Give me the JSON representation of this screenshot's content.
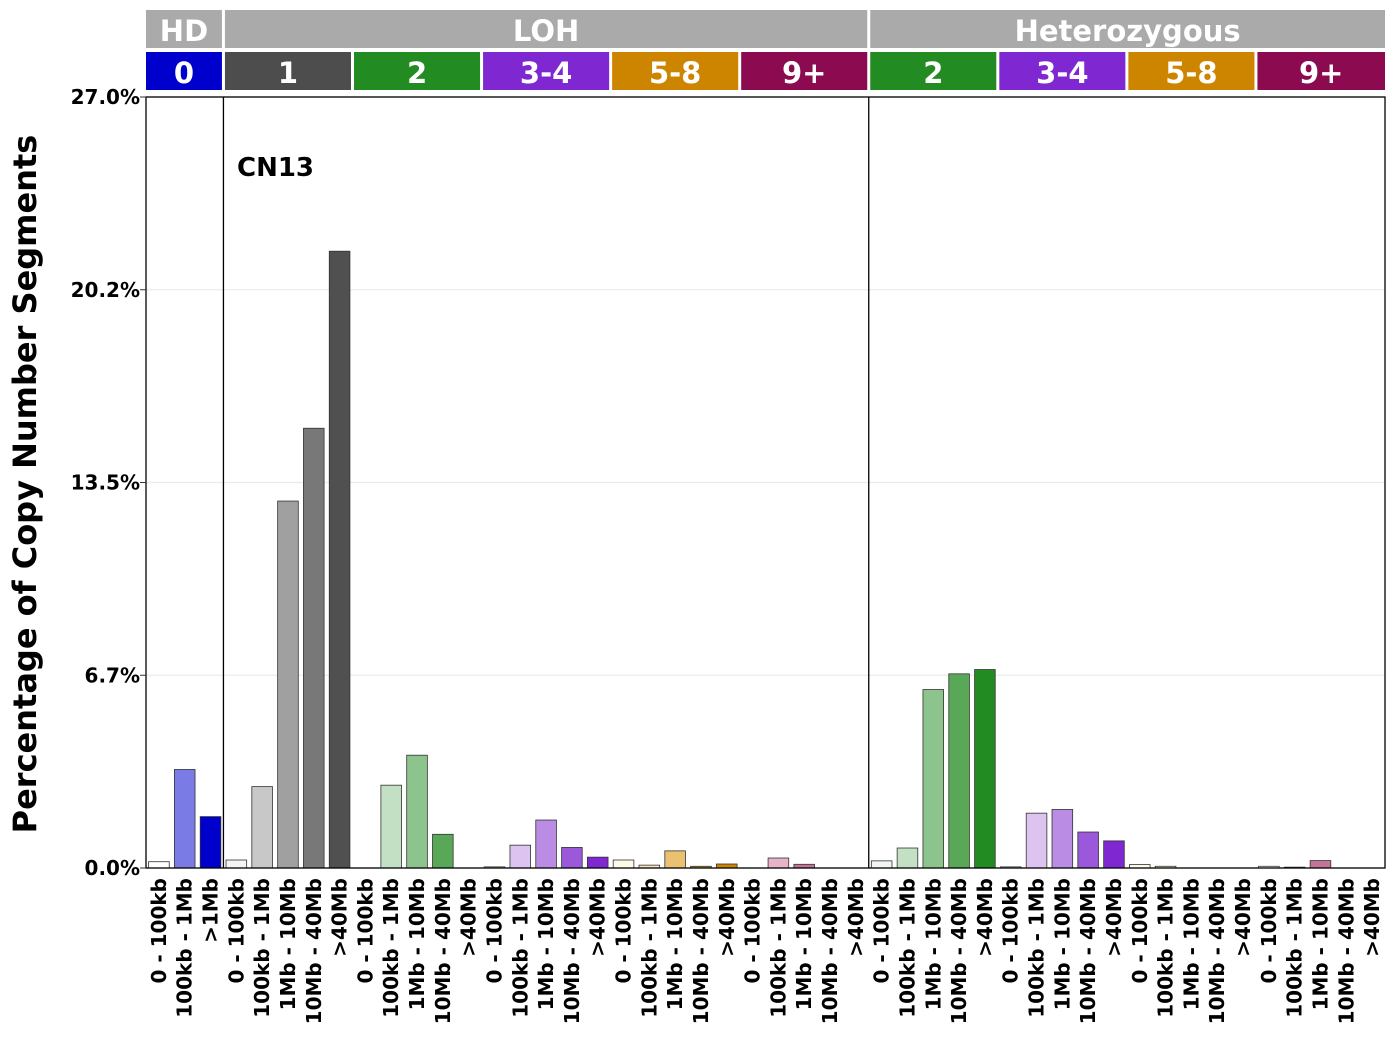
{
  "chart_data": {
    "type": "bar",
    "title": "",
    "annotation": "CN13",
    "ylabel": "Percentage of Copy Number Segments",
    "xlabel": "",
    "ylim": [
      0,
      27.0
    ],
    "yticks": [
      "0.0%",
      "6.7%",
      "13.5%",
      "20.2%",
      "27.0%"
    ],
    "ytick_values": [
      0,
      6.75,
      13.5,
      20.25,
      27.0
    ],
    "grid": "horizontal",
    "legend": "none",
    "top_strip": [
      {
        "label": "HD",
        "color": "#aaaaaa"
      },
      {
        "label": "LOH",
        "color": "#aaaaaa"
      },
      {
        "label": "Heterozygous",
        "color": "#aaaaaa"
      }
    ],
    "groups": [
      {
        "strip": "HD",
        "label": "0",
        "color": "#0000cd",
        "categories": [
          "0 - 100kb",
          "100kb - 1Mb",
          ">1Mb"
        ],
        "values": [
          0.22,
          3.45,
          1.8
        ],
        "fills": [
          "#ffffff",
          "#7b7be6",
          "#0000cd"
        ]
      },
      {
        "strip": "LOH",
        "label": "1",
        "color": "#4d4d4d",
        "categories": [
          "0 - 100kb",
          "100kb - 1Mb",
          "1Mb - 10Mb",
          "10Mb - 40Mb",
          ">40Mb"
        ],
        "values": [
          0.28,
          2.85,
          12.85,
          15.4,
          21.6
        ],
        "fills": [
          "#f4f4f4",
          "#c8c8c8",
          "#a0a0a0",
          "#787878",
          "#505050"
        ]
      },
      {
        "strip": "LOH",
        "label": "2",
        "color": "#228b22",
        "categories": [
          "0 - 100kb",
          "100kb - 1Mb",
          "1Mb - 10Mb",
          "10Mb - 40Mb",
          ">40Mb"
        ],
        "values": [
          0,
          2.9,
          3.95,
          1.18,
          0
        ],
        "fills": [
          "#eef6ee",
          "#c4e0c4",
          "#8dc48d",
          "#58a858",
          "#228b22"
        ]
      },
      {
        "strip": "LOH",
        "label": "3-4",
        "color": "#7f28d2",
        "categories": [
          "0 - 100kb",
          "100kb - 1Mb",
          "1Mb - 10Mb",
          "10Mb - 40Mb",
          ">40Mb"
        ],
        "values": [
          0.04,
          0.8,
          1.68,
          0.72,
          0.38
        ],
        "fills": [
          "#f3ebfa",
          "#ddc4f0",
          "#bb8ce4",
          "#9b58da",
          "#7f28d2"
        ]
      },
      {
        "strip": "LOH",
        "label": "5-8",
        "color": "#cd8500",
        "categories": [
          "0 - 100kb",
          "100kb - 1Mb",
          "1Mb - 10Mb",
          "10Mb - 40Mb",
          ">40Mb"
        ],
        "values": [
          0.28,
          0.1,
          0.6,
          0.06,
          0.14
        ],
        "fills": [
          "#fffae8",
          "#f7e7bb",
          "#ebc070",
          "#d9a032",
          "#cd8500"
        ]
      },
      {
        "strip": "LOH",
        "label": "9+",
        "color": "#8b0a50",
        "categories": [
          "0 - 100kb",
          "100kb - 1Mb",
          "1Mb - 10Mb",
          "10Mb - 40Mb",
          ">40Mb"
        ],
        "values": [
          0,
          0.35,
          0.13,
          0,
          0
        ],
        "fills": [
          "#fbeef3",
          "#e6b3c8",
          "#c47499",
          "#a43d72",
          "#8b0a50"
        ]
      },
      {
        "strip": "Heterozygous",
        "label": "2",
        "color": "#228b22",
        "categories": [
          "0 - 100kb",
          "100kb - 1Mb",
          "1Mb - 10Mb",
          "10Mb - 40Mb",
          ">40Mb"
        ],
        "values": [
          0.25,
          0.7,
          6.25,
          6.8,
          6.95
        ],
        "fills": [
          "#eef6ee",
          "#c4e0c4",
          "#8dc48d",
          "#58a858",
          "#228b22"
        ]
      },
      {
        "strip": "Heterozygous",
        "label": "3-4",
        "color": "#7f28d2",
        "categories": [
          "0 - 100kb",
          "100kb - 1Mb",
          "1Mb - 10Mb",
          "10Mb - 40Mb",
          ">40Mb"
        ],
        "values": [
          0.04,
          1.92,
          2.05,
          1.26,
          0.95
        ],
        "fills": [
          "#f3ebfa",
          "#ddc4f0",
          "#bb8ce4",
          "#9b58da",
          "#7f28d2"
        ]
      },
      {
        "strip": "Heterozygous",
        "label": "5-8",
        "color": "#cd8500",
        "categories": [
          "0 - 100kb",
          "100kb - 1Mb",
          "1Mb - 10Mb",
          "10Mb - 40Mb",
          ">40Mb"
        ],
        "values": [
          0.12,
          0.06,
          0,
          0,
          0
        ],
        "fills": [
          "#fffae8",
          "#f7e7bb",
          "#ebc070",
          "#d9a032",
          "#cd8500"
        ]
      },
      {
        "strip": "Heterozygous",
        "label": "9+",
        "color": "#8b0a50",
        "categories": [
          "0 - 100kb",
          "100kb - 1Mb",
          "1Mb - 10Mb",
          "10Mb - 40Mb",
          ">40Mb"
        ],
        "values": [
          0.06,
          0.03,
          0.26,
          0,
          0
        ],
        "fills": [
          "#fbeef3",
          "#e6b3c8",
          "#c47499",
          "#a43d72",
          "#8b0a50"
        ]
      }
    ]
  }
}
